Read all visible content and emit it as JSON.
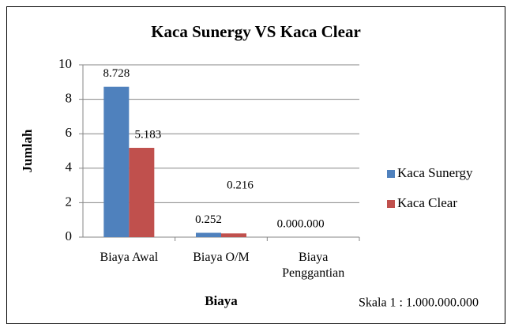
{
  "chart_data": {
    "type": "bar",
    "title": "Kaca Sunergy VS Kaca Clear",
    "x_label": "Biaya",
    "y_label": "Jumlah",
    "annotation": "Skala  1 : 1.000.000.000",
    "categories": [
      "Biaya Awal",
      "Biaya O/M",
      "Biaya Penggantian"
    ],
    "series": [
      {
        "name": "Kaca Sunergy",
        "color": "#4f81bd",
        "values": [
          8.728,
          0.252,
          0
        ],
        "value_labels": [
          "8.728",
          "0.252",
          "0.000.000"
        ]
      },
      {
        "name": "Kaca Clear",
        "color": "#c0504d",
        "values": [
          5.183,
          0.216,
          0
        ],
        "value_labels": [
          "5.183",
          "0.216",
          null
        ]
      }
    ],
    "ylim": [
      0,
      10
    ],
    "yticks": [
      0,
      2,
      4,
      6,
      8,
      10
    ],
    "grid": true,
    "legend": "right"
  }
}
